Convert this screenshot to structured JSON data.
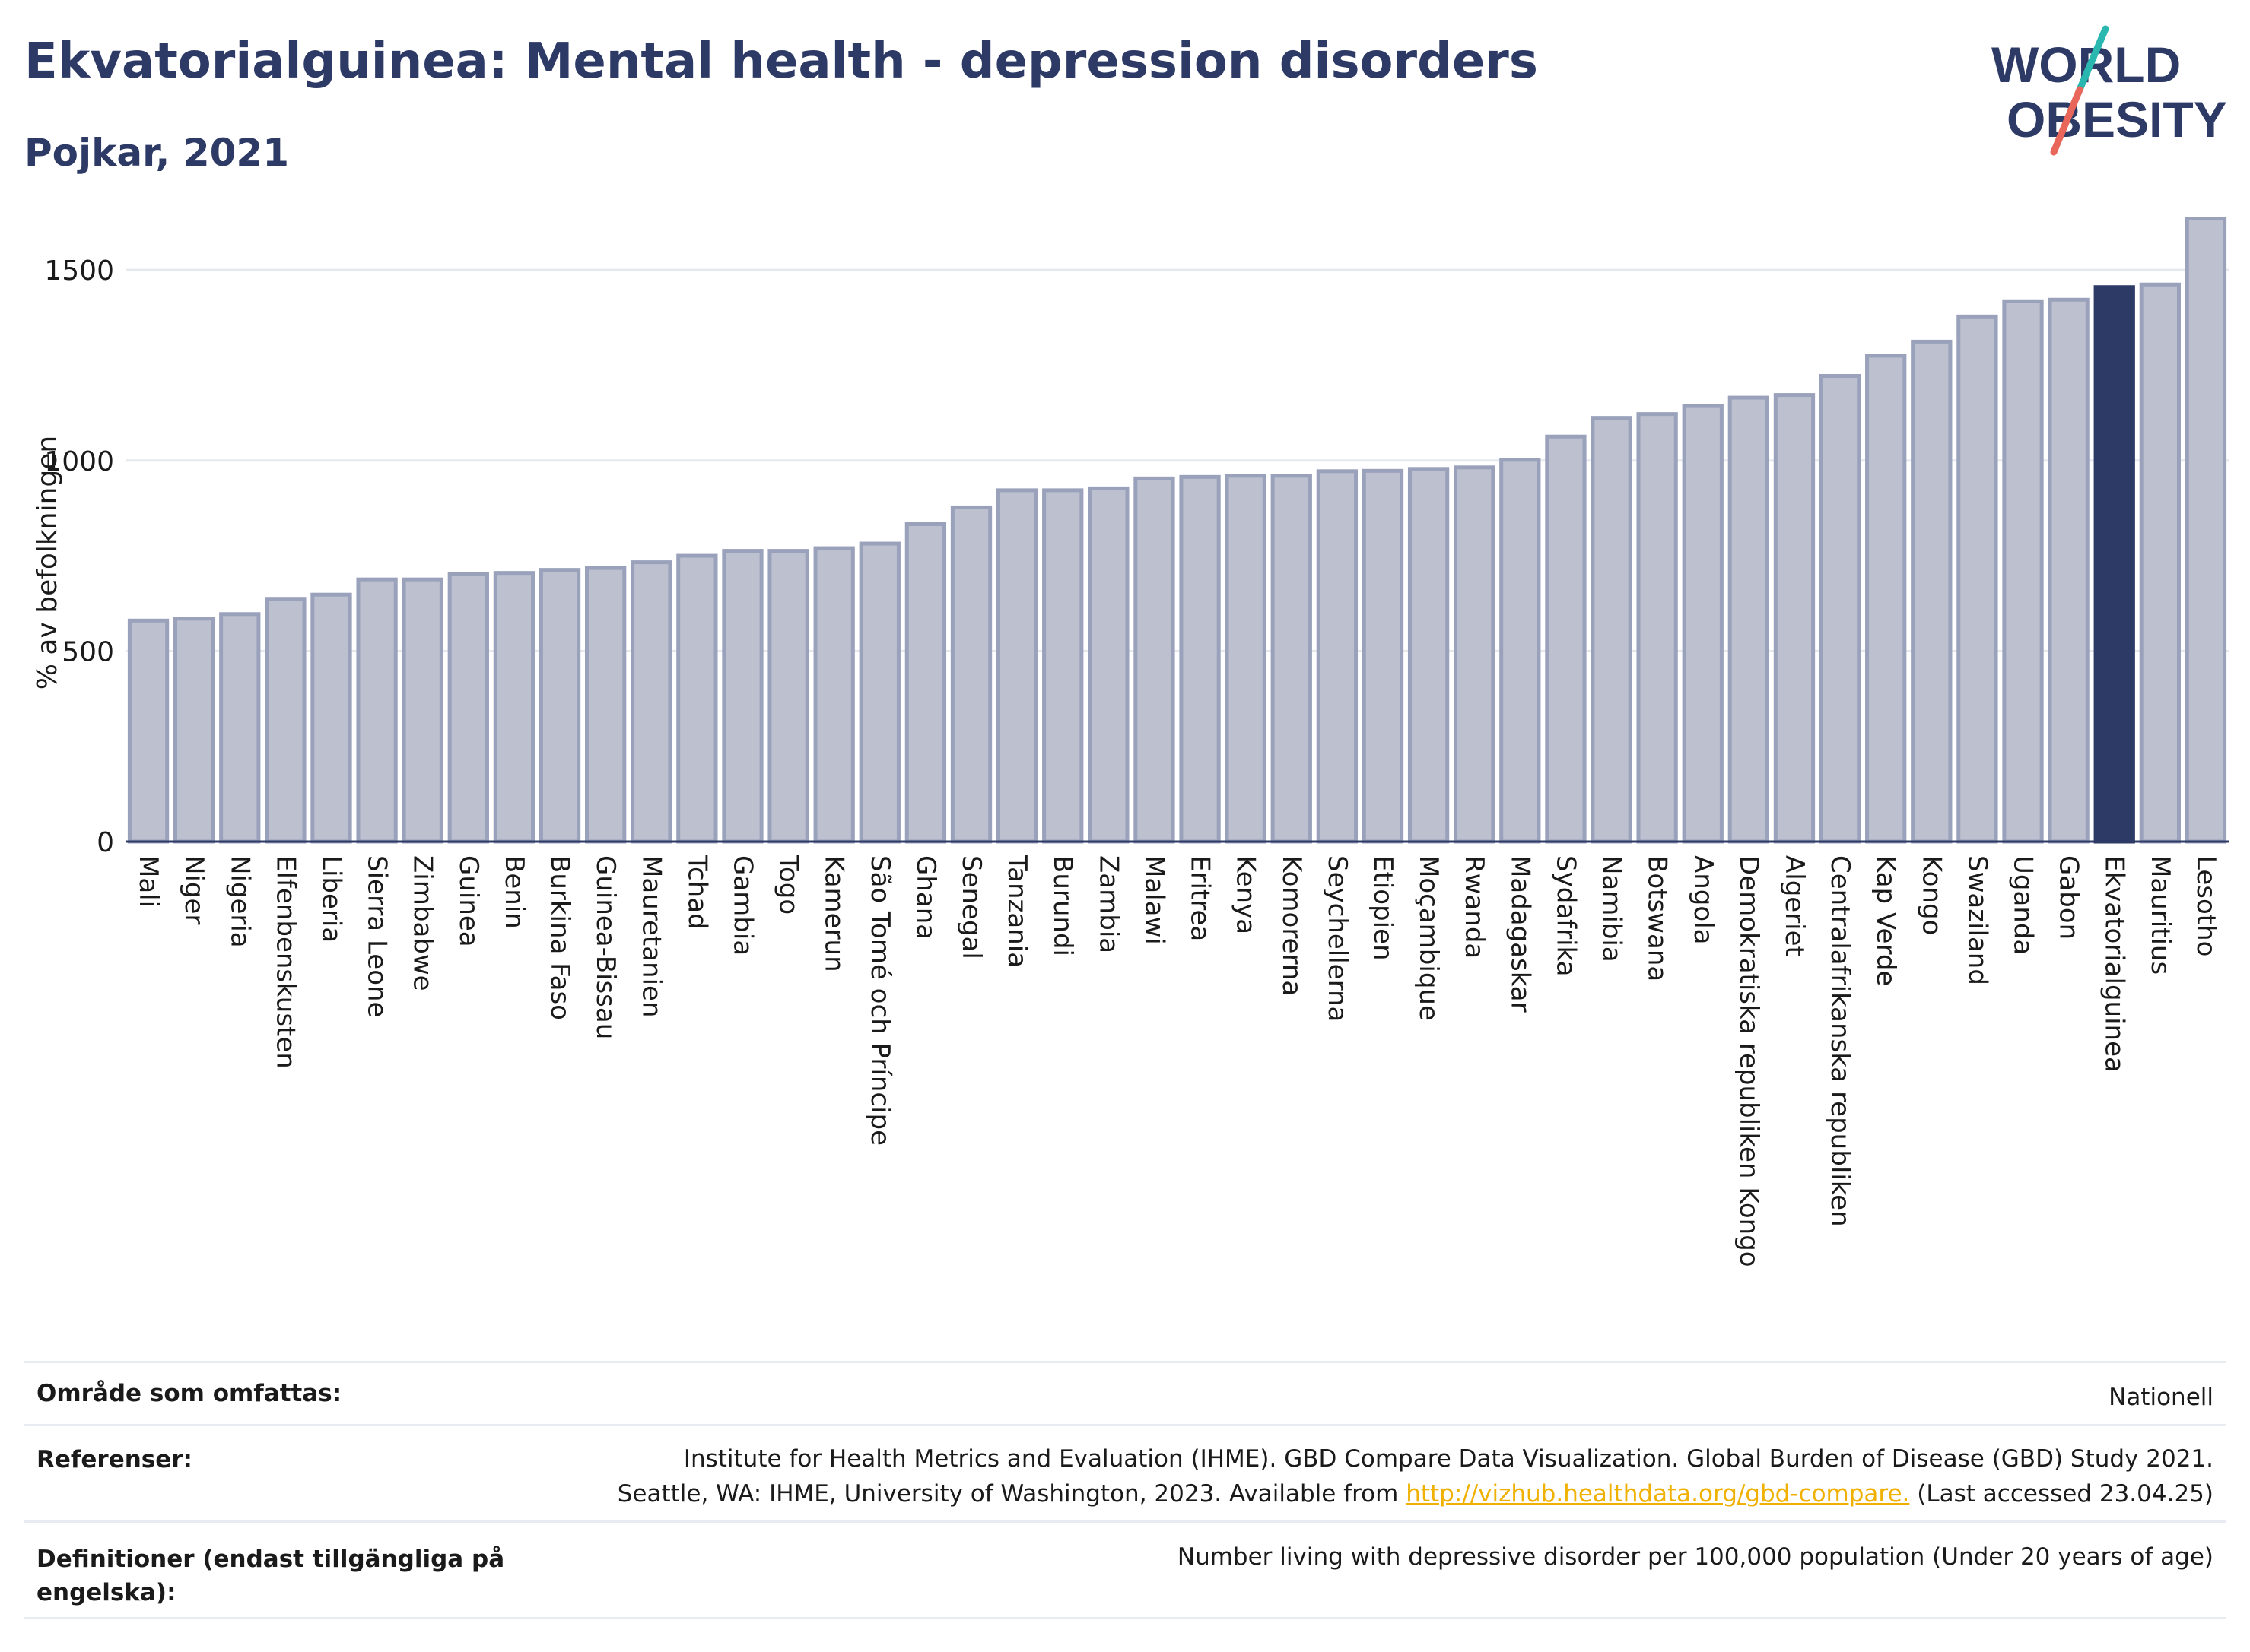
{
  "header": {
    "title": "Ekvatorialguinea: Mental health - depression disorders",
    "subtitle": "Pojkar, 2021"
  },
  "logo": {
    "line1": "WORLD",
    "line2": "OBESITY"
  },
  "colors": {
    "bar": "#bcc0cf",
    "bar_stroke": "#9aa1bb",
    "highlight": "#2d3a66",
    "grid": "#e6e8ef",
    "axis": "#2d3a66",
    "title": "#2d3a66",
    "link": "#f0b000",
    "logo_teal": "#2ab7b0",
    "logo_coral": "#e8665a"
  },
  "chart_data": {
    "type": "bar",
    "title": "Ekvatorialguinea: Mental health - depression disorders",
    "subtitle": "Pojkar, 2021",
    "ylabel": "% av befolkningen",
    "xlabel": "",
    "ylim": [
      0,
      1650
    ],
    "yticks": [
      0,
      500,
      1000,
      1500
    ],
    "grid": true,
    "highlight": "Ekvatorialguinea",
    "categories": [
      "Mali",
      "Niger",
      "Nigeria",
      "Elfenbenskusten",
      "Liberia",
      "Sierra Leone",
      "Zimbabwe",
      "Guinea",
      "Benin",
      "Burkina Faso",
      "Guinea-Bissau",
      "Mauretanien",
      "Tchad",
      "Gambia",
      "Togo",
      "Kamerun",
      "São Tomé och Príncipe",
      "Ghana",
      "Senegal",
      "Tanzania",
      "Burundi",
      "Zambia",
      "Malawi",
      "Eritrea",
      "Kenya",
      "Komorerna",
      "Seychellerna",
      "Etiopien",
      "Moçambique",
      "Rwanda",
      "Madagaskar",
      "Sydafrika",
      "Namibia",
      "Botswana",
      "Angola",
      "Demokratiska republiken Kongo",
      "Algeriet",
      "Centralafrikanska republiken",
      "Kap Verde",
      "Kongo",
      "Swaziland",
      "Uganda",
      "Gabon",
      "Ekvatorialguinea",
      "Mauritius",
      "Lesotho"
    ],
    "values": [
      580,
      585,
      597,
      637,
      648,
      688,
      688,
      703,
      705,
      713,
      718,
      733,
      750,
      763,
      763,
      770,
      782,
      833,
      877,
      922,
      922,
      927,
      953,
      957,
      960,
      960,
      972,
      973,
      978,
      982,
      1002,
      1063,
      1112,
      1122,
      1143,
      1165,
      1172,
      1222,
      1275,
      1312,
      1378,
      1418,
      1422,
      1455,
      1462,
      1635
    ]
  },
  "footer": {
    "coverage_label": "Område som omfattas:",
    "coverage_value": "Nationell",
    "references_label": "Referenser:",
    "references_line1": "Institute for Health Metrics and Evaluation (IHME). GBD Compare Data Visualization. Global Burden of Disease (GBD) Study 2021.",
    "references_line2_pre": "Seattle, WA: IHME, University of Washington, 2023. Available from ",
    "references_link": "http://vizhub.healthdata.org/gbd-compare.",
    "references_line2_post": " (Last accessed 23.04.25)",
    "definitions_label": "Definitioner (endast tillgängliga på engelska):",
    "definitions_value": "Number living with depressive disorder per 100,000 population (Under 20 years of age)"
  }
}
